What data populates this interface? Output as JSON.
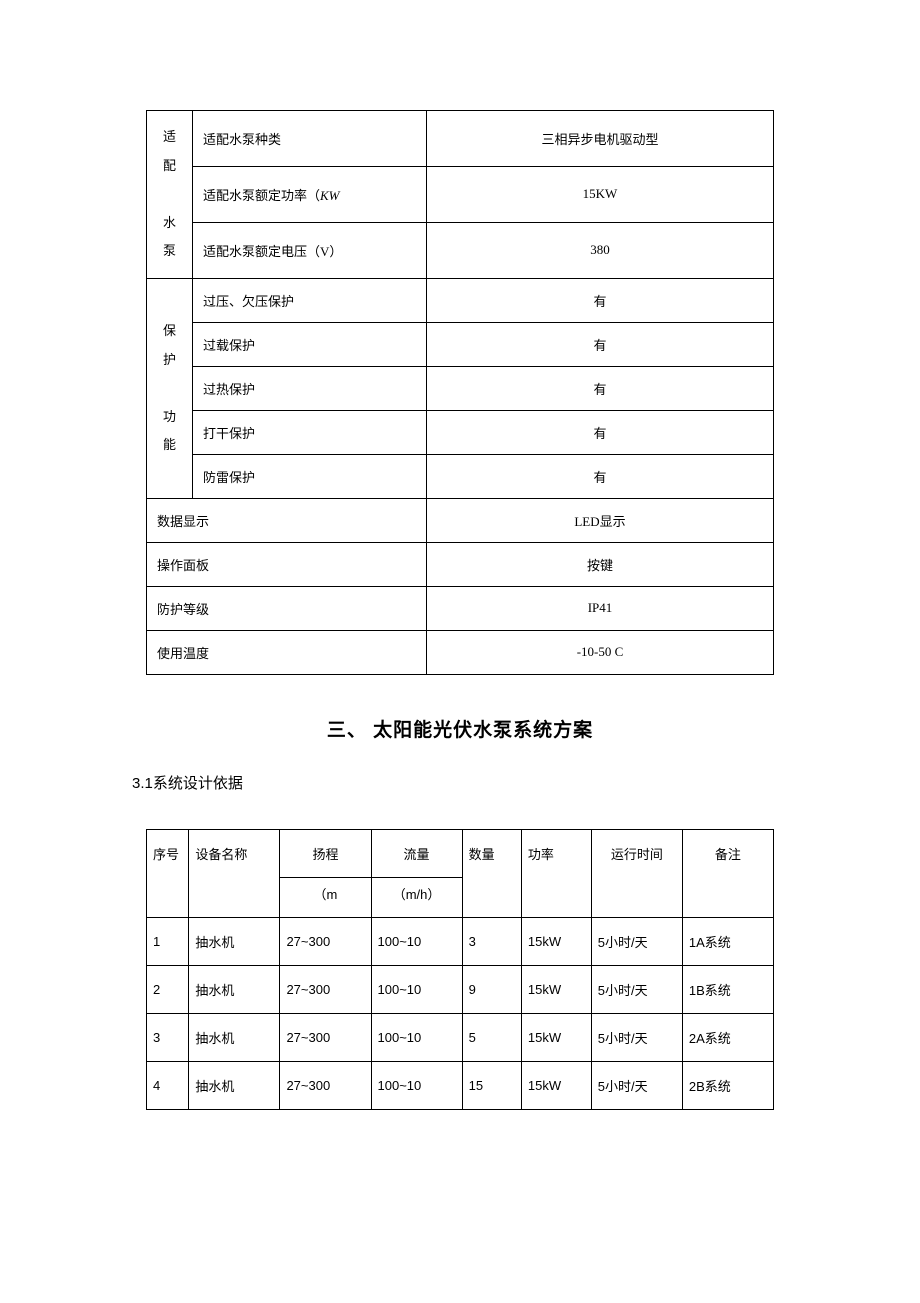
{
  "spec_table": {
    "groups": [
      {
        "label": "适配\n水泵",
        "rows": [
          {
            "param": "适配水泵种类",
            "value": "三相异步电机驱动型"
          },
          {
            "param_html": "适配水泵额定功率（<i>KW</i>",
            "value": "15KW"
          },
          {
            "param": "适配水泵额定电压（V）",
            "value": "380"
          }
        ]
      },
      {
        "label": "保护\n功能",
        "rows": [
          {
            "param": "过压、欠压保护",
            "value": "有"
          },
          {
            "param": "过载保护",
            "value": "有"
          },
          {
            "param": "过热保护",
            "value": "有"
          },
          {
            "param": "打干保护",
            "value": "有"
          },
          {
            "param": "防雷保护",
            "value": "有"
          }
        ]
      }
    ],
    "flat_rows": [
      {
        "param": "数据显示",
        "value": "LED显示"
      },
      {
        "param": "操作面板",
        "value": "按键"
      },
      {
        "param": "防护等级",
        "value": "IP41"
      },
      {
        "param": "使用温度",
        "value": "-10-50 C"
      }
    ]
  },
  "section_title": "三、  太阳能光伏水泵系统方案",
  "subsection": "3.1系统设计依据",
  "design_table": {
    "columns": {
      "seq": "序号",
      "name": "设备名称",
      "head": "扬程",
      "head_unit": "（m",
      "flow": "流量",
      "flow_unit": "（m/h）",
      "qty": "数量",
      "power": "功率",
      "time": "运行时间",
      "note": "备注"
    },
    "rows": [
      {
        "seq": "1",
        "name": "抽水机",
        "head": "27~300",
        "flow": "100~10",
        "qty": "3",
        "power": "15kW",
        "time": "5小时/天",
        "note": "1A系统"
      },
      {
        "seq": "2",
        "name": "抽水机",
        "head": "27~300",
        "flow": "100~10",
        "qty": "9",
        "power": "15kW",
        "time": "5小时/天",
        "note": "1B系统"
      },
      {
        "seq": "3",
        "name": "抽水机",
        "head": "27~300",
        "flow": "100~10",
        "qty": "5",
        "power": "15kW",
        "time": "5小时/天",
        "note": "2A系统"
      },
      {
        "seq": "4",
        "name": "抽水机",
        "head": "27~300",
        "flow": "100~10",
        "qty": "15",
        "power": "15kW",
        "time": "5小时/天",
        "note": "2B系统"
      }
    ]
  }
}
